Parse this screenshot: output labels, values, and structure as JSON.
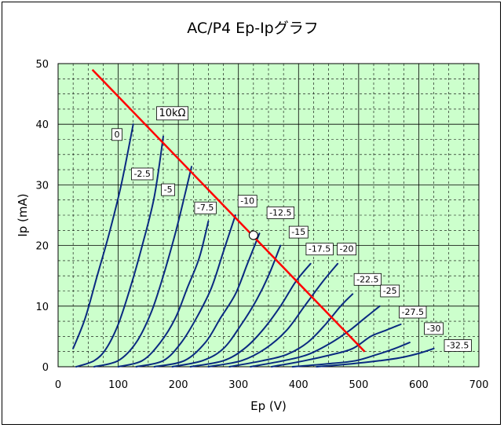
{
  "chart_data": {
    "type": "line",
    "title": "AC/P4 Ep-Ipグラフ",
    "xlabel": "Ep (V)",
    "ylabel": "Ip (mA)",
    "xlim": [
      0,
      700
    ],
    "ylim": [
      0,
      50
    ],
    "x_ticks": [
      "0",
      "100",
      "200",
      "300",
      "400",
      "500",
      "600",
      "700"
    ],
    "y_ticks": [
      "0",
      "10",
      "20",
      "30",
      "40",
      "50"
    ],
    "grid": true,
    "plot_background": "#ccffcc",
    "curve_color": "#0a2a80",
    "load_line_color": "#ff0000",
    "series": [
      {
        "name": "0",
        "points": [
          [
            25,
            3
          ],
          [
            45,
            8
          ],
          [
            65,
            15
          ],
          [
            85,
            22
          ],
          [
            105,
            30
          ],
          [
            125,
            40
          ]
        ]
      },
      {
        "name": "-2.5",
        "points": [
          [
            30,
            0
          ],
          [
            60,
            1
          ],
          [
            80,
            3
          ],
          [
            100,
            7
          ],
          [
            120,
            13
          ],
          [
            140,
            20
          ],
          [
            160,
            28
          ],
          [
            175,
            38
          ]
        ]
      },
      {
        "name": "-5",
        "points": [
          [
            60,
            0
          ],
          [
            100,
            1
          ],
          [
            130,
            4
          ],
          [
            155,
            9
          ],
          [
            175,
            15
          ],
          [
            195,
            22
          ],
          [
            210,
            28
          ],
          [
            222,
            33
          ]
        ]
      },
      {
        "name": "-7.5",
        "points": [
          [
            100,
            0
          ],
          [
            140,
            1
          ],
          [
            170,
            4
          ],
          [
            195,
            8
          ],
          [
            215,
            13
          ],
          [
            235,
            18
          ],
          [
            250,
            24
          ]
        ]
      },
      {
        "name": "-10",
        "points": [
          [
            130,
            0
          ],
          [
            175,
            1
          ],
          [
            205,
            4
          ],
          [
            230,
            8
          ],
          [
            255,
            13
          ],
          [
            275,
            19
          ],
          [
            295,
            25
          ]
        ]
      },
      {
        "name": "-12.5",
        "points": [
          [
            160,
            0
          ],
          [
            210,
            1
          ],
          [
            245,
            4
          ],
          [
            270,
            8
          ],
          [
            295,
            12
          ],
          [
            315,
            17
          ],
          [
            335,
            22
          ]
        ]
      },
      {
        "name": "-15",
        "points": [
          [
            190,
            0
          ],
          [
            240,
            1
          ],
          [
            275,
            3
          ],
          [
            305,
            7
          ],
          [
            330,
            11
          ],
          [
            350,
            15
          ],
          [
            370,
            20
          ]
        ]
      },
      {
        "name": "-17.5",
        "points": [
          [
            220,
            0
          ],
          [
            275,
            1
          ],
          [
            310,
            3
          ],
          [
            340,
            6
          ],
          [
            370,
            10
          ],
          [
            395,
            14
          ],
          [
            420,
            17
          ]
        ]
      },
      {
        "name": "-20",
        "points": [
          [
            250,
            0
          ],
          [
            305,
            1
          ],
          [
            345,
            3
          ],
          [
            380,
            6
          ],
          [
            410,
            10
          ],
          [
            440,
            14
          ],
          [
            465,
            17
          ]
        ]
      },
      {
        "name": "-22.5",
        "points": [
          [
            285,
            0
          ],
          [
            340,
            1
          ],
          [
            380,
            2
          ],
          [
            415,
            4
          ],
          [
            445,
            7
          ],
          [
            470,
            10
          ],
          [
            490,
            12
          ]
        ]
      },
      {
        "name": "-25",
        "points": [
          [
            320,
            0
          ],
          [
            375,
            1
          ],
          [
            415,
            2
          ],
          [
            455,
            4
          ],
          [
            485,
            6
          ],
          [
            510,
            8
          ],
          [
            535,
            10
          ]
        ]
      },
      {
        "name": "-27.5",
        "points": [
          [
            355,
            0
          ],
          [
            410,
            1
          ],
          [
            455,
            2
          ],
          [
            490,
            3
          ],
          [
            520,
            5
          ],
          [
            545,
            6
          ],
          [
            570,
            7
          ]
        ]
      },
      {
        "name": "-30",
        "points": [
          [
            390,
            0
          ],
          [
            450,
            0.5
          ],
          [
            495,
            1
          ],
          [
            530,
            2
          ],
          [
            560,
            3
          ],
          [
            585,
            4
          ]
        ]
      },
      {
        "name": "-32.5",
        "points": [
          [
            430,
            0
          ],
          [
            490,
            0.5
          ],
          [
            535,
            1
          ],
          [
            570,
            1.5
          ],
          [
            600,
            2.2
          ],
          [
            625,
            3
          ]
        ]
      }
    ],
    "curve_labels": [
      {
        "text": "0",
        "x": 98,
        "y": 38.3
      },
      {
        "text": "-2.5",
        "x": 140,
        "y": 31.8
      },
      {
        "text": "-5",
        "x": 183,
        "y": 29.2
      },
      {
        "text": "-7.5",
        "x": 245,
        "y": 26.2
      },
      {
        "text": "-10",
        "x": 315,
        "y": 27.3
      },
      {
        "text": "-12.5",
        "x": 370,
        "y": 25.4
      },
      {
        "text": "-15",
        "x": 400,
        "y": 22.2
      },
      {
        "text": "-17.5",
        "x": 435,
        "y": 19.4
      },
      {
        "text": "-20",
        "x": 480,
        "y": 19.4
      },
      {
        "text": "-22.5",
        "x": 515,
        "y": 14.4
      },
      {
        "text": "-25",
        "x": 552,
        "y": 12.5
      },
      {
        "text": "-27.5",
        "x": 590,
        "y": 9.0
      },
      {
        "text": "-30",
        "x": 625,
        "y": 6.3
      },
      {
        "text": "-32.5",
        "x": 665,
        "y": 3.5
      }
    ],
    "load_line": {
      "label": "10kΩ",
      "label_x": 190,
      "label_y": 41.8,
      "points": [
        [
          57,
          49
        ],
        [
          510,
          2.5
        ]
      ]
    },
    "operating_point": {
      "x": 325,
      "y": 21.7
    }
  }
}
